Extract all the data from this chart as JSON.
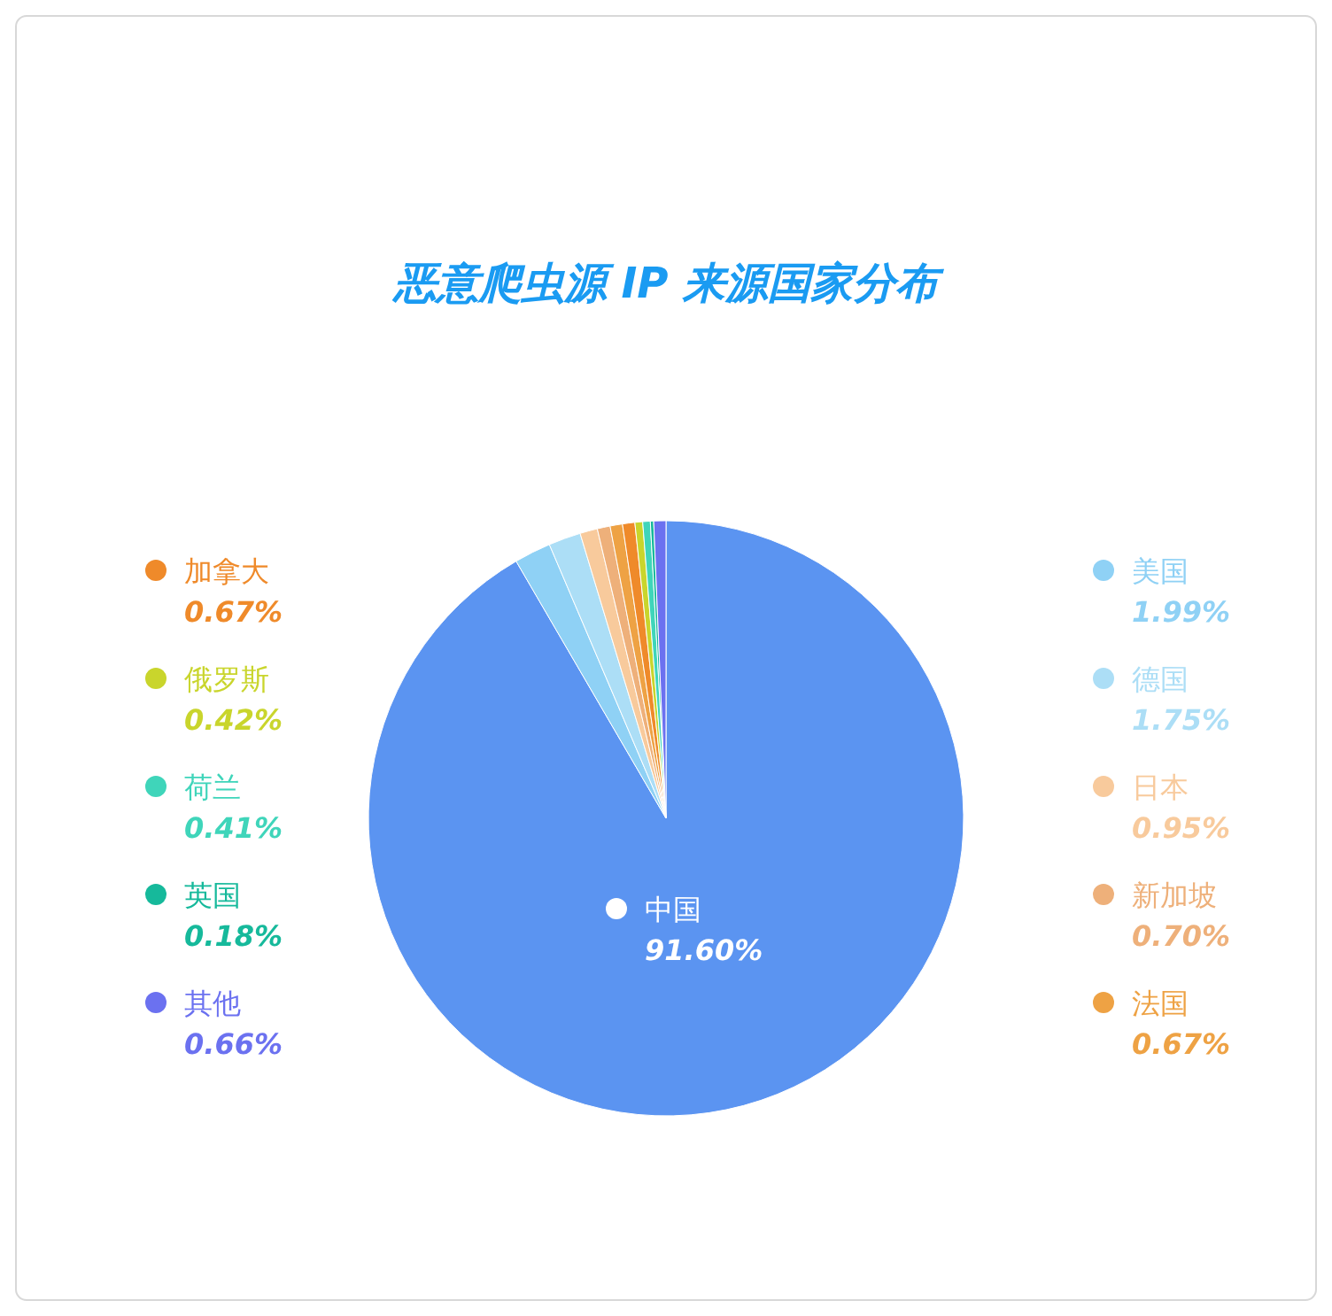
{
  "chart_data": {
    "type": "pie",
    "title": "恶意爬虫源 IP 来源国家分布",
    "categories": [
      "中国",
      "美国",
      "德国",
      "日本",
      "新加坡",
      "法国",
      "加拿大",
      "俄罗斯",
      "荷兰",
      "英国",
      "其他"
    ],
    "values": [
      91.6,
      1.99,
      1.75,
      0.95,
      0.7,
      0.67,
      0.67,
      0.42,
      0.41,
      0.18,
      0.66
    ],
    "value_labels": [
      "91.60%",
      "1.99%",
      "1.75%",
      "0.95%",
      "0.70%",
      "0.67%",
      "0.67%",
      "0.42%",
      "0.41%",
      "0.18%",
      "0.66%"
    ],
    "colors": [
      "#5b94f1",
      "#8fd1f5",
      "#acdef6",
      "#f8ca9c",
      "#eeb07a",
      "#eea244",
      "#ef8a2a",
      "#c9d52c",
      "#3fd5ba",
      "#16b99b",
      "#6b71f0"
    ],
    "legend": "right"
  }
}
